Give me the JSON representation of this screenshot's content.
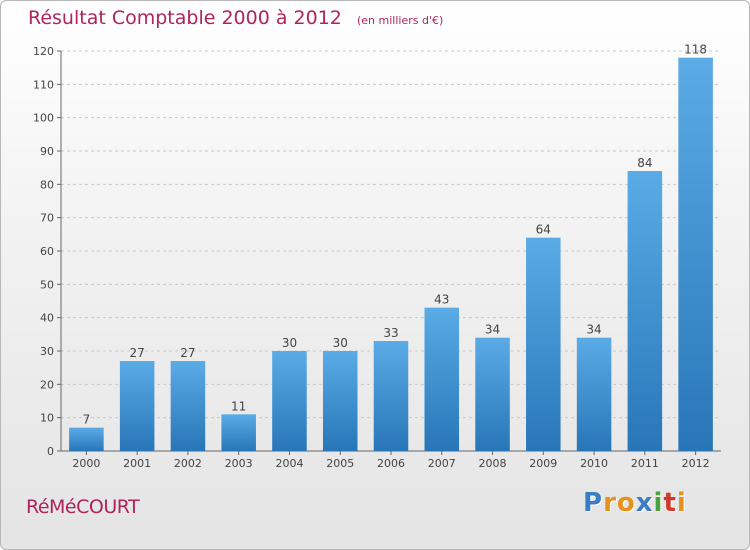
{
  "header": {
    "title": "Résultat Comptable 2000 à 2012",
    "unit": "(en milliers d'€)"
  },
  "footer": {
    "place": "RéMéCOURT",
    "logo": "Proxiti"
  },
  "colors": {
    "bar_light": "#5aabe6",
    "bar_dark": "#2876b8",
    "title": "#b0245c",
    "grid": "#c8c8c8",
    "axis": "#666666"
  },
  "chart_data": {
    "type": "bar",
    "title": "Résultat Comptable 2000 à 2012",
    "subtitle": "(en milliers d'€)",
    "categories": [
      "2000",
      "2001",
      "2002",
      "2003",
      "2004",
      "2005",
      "2006",
      "2007",
      "2008",
      "2009",
      "2010",
      "2011",
      "2012"
    ],
    "values": [
      7,
      27,
      27,
      11,
      30,
      30,
      33,
      43,
      34,
      64,
      34,
      84,
      118
    ],
    "ylim": [
      0,
      120
    ],
    "yticks": [
      0,
      10,
      20,
      30,
      40,
      50,
      60,
      70,
      80,
      90,
      100,
      110,
      120
    ],
    "grid": true,
    "data_labels": true
  }
}
